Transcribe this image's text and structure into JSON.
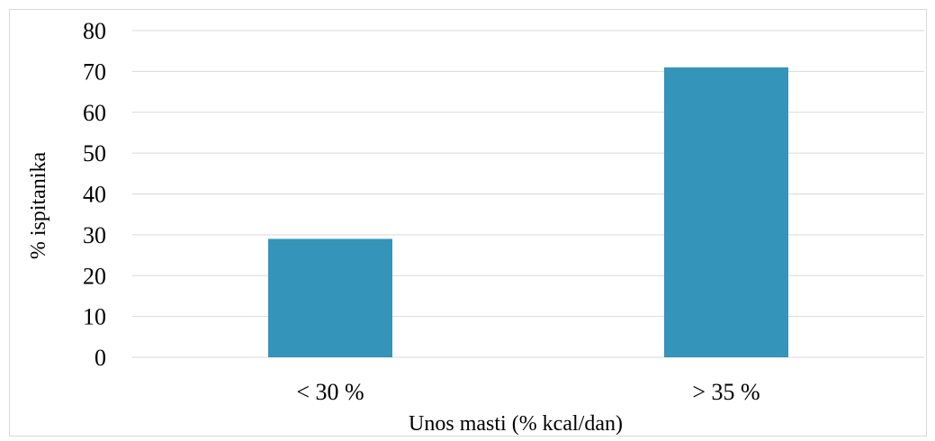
{
  "chart_data": {
    "type": "bar",
    "title": "",
    "xlabel": "Unos masti (% kcal/dan)",
    "ylabel": "% ispitanika",
    "categories": [
      "< 30 %",
      "> 35 %"
    ],
    "values": [
      29,
      71
    ],
    "ylim": [
      0,
      80
    ],
    "yticks": [
      0,
      10,
      20,
      30,
      40,
      50,
      60,
      70,
      80
    ],
    "grid": true,
    "legend": "none",
    "bar_color": "#3594BA",
    "grid_color": "#d9d9d9"
  }
}
